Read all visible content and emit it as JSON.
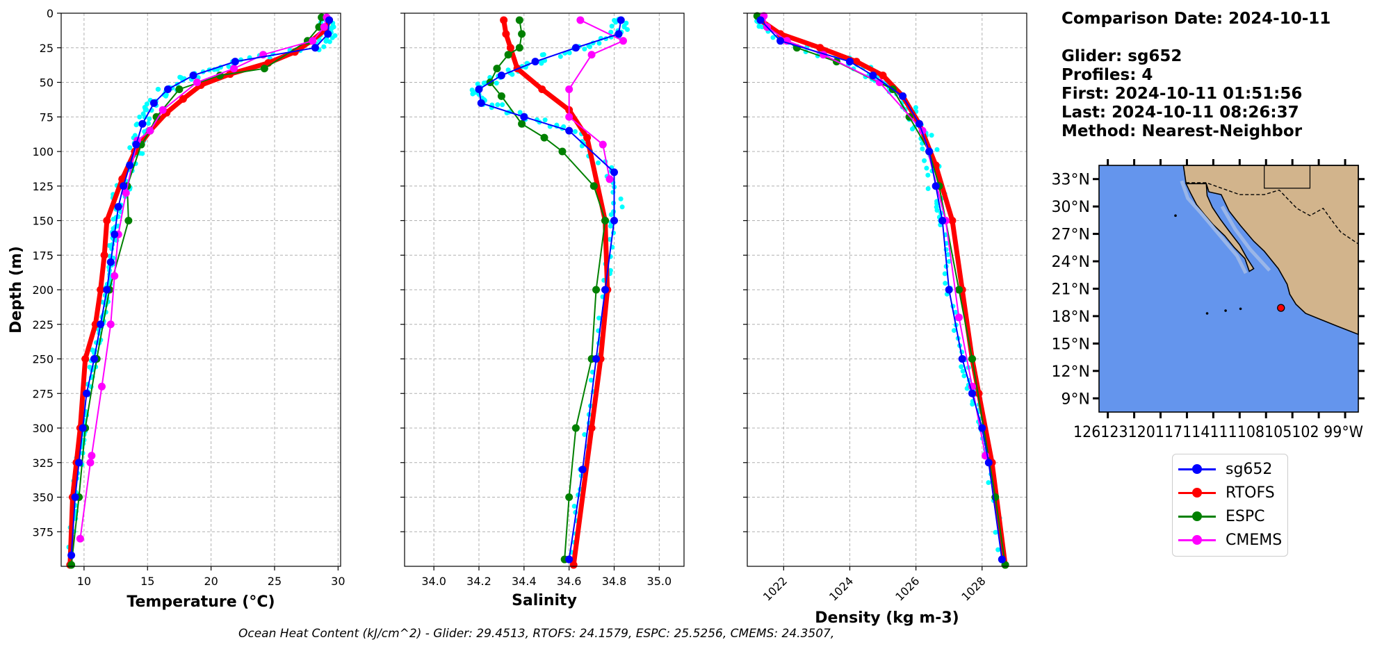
{
  "info": {
    "comparison": "Comparison Date: 2024-10-11",
    "glider": "Glider: sg652",
    "profiles": "Profiles: 4",
    "first": "First: 2024-10-11 01:51:56",
    "last": "Last: 2024-10-11 08:26:37",
    "method": "Method: Nearest-Neighbor"
  },
  "footer": "Ocean Heat Content (kJ/cm^2) - Glider: 29.4513,  RTOFS: 24.1579,  ESPC: 25.5256,  CMEMS: 24.3507,",
  "colors": {
    "sg652": "#0000ff",
    "RTOFS": "#ff0000",
    "ESPC": "#008000",
    "CMEMS": "#ff00ff",
    "profiles": "#00ffff",
    "ocean": "#6495ed",
    "land": "#d2b48c",
    "shelf": "#9ab6e8"
  },
  "legend": [
    "sg652",
    "RTOFS",
    "ESPC",
    "CMEMS"
  ],
  "chart_data": [
    {
      "type": "line",
      "name": "temperature",
      "xlabel": "Temperature (°C)",
      "ylabel": "Depth (m)",
      "xlim": [
        8.2,
        30.2
      ],
      "ylim": [
        400,
        0
      ],
      "xticks": [
        10,
        15,
        20,
        25,
        30
      ],
      "yticks": [
        0,
        25,
        50,
        75,
        100,
        125,
        150,
        175,
        200,
        225,
        250,
        275,
        300,
        325,
        350,
        375
      ],
      "grid": true,
      "series": [
        {
          "name": "sg652",
          "x": [
            29.3,
            29.2,
            28.2,
            21.9,
            18.6,
            16.6,
            15.5,
            14.6,
            14.1,
            13.6,
            13.1,
            12.7,
            12.4,
            12.1,
            11.8,
            11.3,
            10.8,
            10.2,
            9.9,
            9.6,
            9.3,
            9.0
          ],
          "y": [
            5,
            15,
            25,
            35,
            45,
            55,
            65,
            80,
            95,
            110,
            125,
            140,
            160,
            180,
            200,
            225,
            250,
            275,
            300,
            325,
            350,
            392
          ]
        },
        {
          "name": "RTOFS",
          "x": [
            29.3,
            29.0,
            27.9,
            26.6,
            24.5,
            21.5,
            19.2,
            17.8,
            16.5,
            15.2,
            14.0,
            13.0,
            11.8,
            11.6,
            11.3,
            10.9,
            10.1,
            9.7,
            9.4,
            9.1,
            8.9
          ],
          "y": [
            5,
            12,
            20,
            28,
            36,
            44,
            52,
            62,
            72,
            85,
            100,
            120,
            150,
            175,
            200,
            225,
            250,
            300,
            325,
            350,
            399
          ]
        },
        {
          "name": "ESPC",
          "x": [
            28.7,
            28.5,
            27.6,
            24.2,
            20.7,
            17.5,
            15.7,
            15.2,
            14.5,
            13.4,
            13.5,
            12.0,
            11.0,
            10.1,
            9.6,
            9.0
          ],
          "y": [
            3,
            10,
            20,
            40,
            45,
            55,
            75,
            85,
            95,
            125,
            150,
            200,
            250,
            300,
            350,
            399
          ]
        },
        {
          "name": "CMEMS",
          "x": [
            29.1,
            28.9,
            28.0,
            24.1,
            21.8,
            18.9,
            16.2,
            15.2,
            14.2,
            13.3,
            12.7,
            12.4,
            12.1,
            11.4,
            10.6,
            10.5,
            9.7
          ],
          "y": [
            3,
            10,
            20,
            30,
            40,
            50,
            70,
            85,
            92,
            130,
            160,
            190,
            225,
            270,
            320,
            325,
            380
          ]
        }
      ]
    },
    {
      "type": "line",
      "name": "salinity",
      "xlabel": "Salinity",
      "xlim": [
        33.87,
        35.11
      ],
      "ylim": [
        400,
        0
      ],
      "xticks": [
        34.0,
        34.2,
        34.4,
        34.6,
        34.8,
        35.0
      ],
      "grid": true,
      "series": [
        {
          "name": "sg652",
          "x": [
            34.83,
            34.82,
            34.63,
            34.45,
            34.3,
            34.2,
            34.21,
            34.4,
            34.6,
            34.8,
            34.8,
            34.76,
            34.72,
            34.66,
            34.6
          ],
          "y": [
            5,
            15,
            25,
            35,
            45,
            55,
            65,
            75,
            85,
            115,
            150,
            200,
            250,
            330,
            395
          ]
        },
        {
          "name": "RTOFS",
          "x": [
            34.31,
            34.32,
            34.34,
            34.37,
            34.48,
            34.6,
            34.68,
            34.76,
            34.77,
            34.74,
            34.7,
            34.62
          ],
          "y": [
            5,
            15,
            25,
            40,
            55,
            70,
            90,
            150,
            200,
            250,
            300,
            399
          ]
        },
        {
          "name": "ESPC",
          "x": [
            34.38,
            34.39,
            34.38,
            34.33,
            34.28,
            34.25,
            34.3,
            34.39,
            34.49,
            34.57,
            34.71,
            34.76,
            34.72,
            34.7,
            34.63,
            34.6,
            34.58
          ],
          "y": [
            5,
            15,
            25,
            30,
            40,
            50,
            60,
            80,
            90,
            100,
            125,
            150,
            200,
            250,
            300,
            350,
            395
          ]
        },
        {
          "name": "CMEMS",
          "x": [
            34.65,
            34.84,
            34.7,
            34.6,
            34.6,
            34.75,
            34.78
          ],
          "y": [
            5,
            20,
            30,
            55,
            75,
            95,
            120
          ]
        }
      ]
    },
    {
      "type": "line",
      "name": "density",
      "xlabel": "Density (kg m-3)",
      "xlim": [
        1020.9,
        1029.35
      ],
      "ylim": [
        400,
        0
      ],
      "xticks": [
        1022,
        1024,
        1026,
        1028
      ],
      "grid": true,
      "series": [
        {
          "name": "sg652",
          "x": [
            1021.3,
            1021.9,
            1024.0,
            1024.7,
            1025.6,
            1026.1,
            1026.4,
            1026.6,
            1026.8,
            1027.0,
            1027.4,
            1027.7,
            1028.0,
            1028.2,
            1028.6
          ],
          "y": [
            5,
            20,
            35,
            45,
            60,
            80,
            100,
            125,
            150,
            200,
            250,
            275,
            300,
            325,
            395
          ]
        },
        {
          "name": "RTOFS",
          "x": [
            1021.3,
            1021.9,
            1023.1,
            1024.2,
            1025.0,
            1025.6,
            1026.1,
            1026.6,
            1027.1,
            1027.4,
            1027.7,
            1027.9,
            1028.3,
            1028.7
          ],
          "y": [
            5,
            15,
            25,
            35,
            45,
            60,
            80,
            110,
            150,
            200,
            250,
            275,
            325,
            399
          ]
        },
        {
          "name": "ESPC",
          "x": [
            1021.2,
            1021.5,
            1022.4,
            1023.6,
            1025.3,
            1025.8,
            1026.4,
            1026.7,
            1027.3,
            1027.7,
            1028.4,
            1028.7
          ],
          "y": [
            2,
            10,
            25,
            35,
            55,
            75,
            100,
            125,
            200,
            250,
            350,
            399
          ]
        },
        {
          "name": "CMEMS",
          "x": [
            1021.4,
            1021.5,
            1022.1,
            1023.2,
            1024.9,
            1026.2,
            1026.9,
            1027.3,
            1027.7,
            1028.1
          ],
          "y": [
            2,
            10,
            20,
            30,
            50,
            85,
            150,
            220,
            270,
            320
          ]
        }
      ]
    },
    {
      "type": "map",
      "name": "location",
      "lat_ticks": [
        "33°N",
        "30°N",
        "27°N",
        "24°N",
        "21°N",
        "18°N",
        "15°N",
        "12°N",
        "9°N"
      ],
      "lon_ticks_text": "126123120117114111108105102 99°W",
      "glider_position": {
        "lon": -106.3,
        "lat": 18.9
      }
    }
  ]
}
